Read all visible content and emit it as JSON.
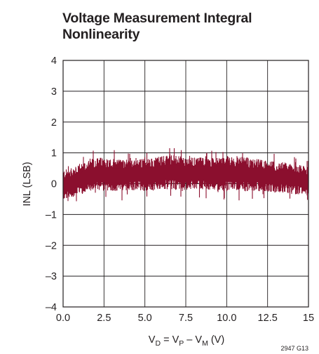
{
  "title_lines": [
    "Voltage Measurement Integral",
    "Nonlinearity"
  ],
  "figure_code": "2947 G13",
  "chart_data": {
    "type": "line",
    "title": "Voltage Measurement Integral Nonlinearity",
    "ylabel": "INL (LSB)",
    "xlabel_parts": {
      "base": "V",
      "sub_d": "D",
      "eq": " = V",
      "sub_p": "P",
      "minus": " – V",
      "sub_m": "M",
      "unit": " (V)"
    },
    "xlim": [
      0,
      15
    ],
    "ylim": [
      -4,
      4
    ],
    "xticks": [
      0,
      2.5,
      5,
      7.5,
      10,
      12.5,
      15
    ],
    "xtick_labels": [
      "0.0",
      "2.5",
      "5.0",
      "7.5",
      "10.0",
      "12.5",
      "15"
    ],
    "yticks": [
      4,
      3,
      2,
      1,
      0,
      -1,
      -2,
      -3,
      -4
    ],
    "ytick_labels": [
      "4",
      "3",
      "2",
      "1",
      "0",
      "–1",
      "–2",
      "–3",
      "–4"
    ],
    "grid": true,
    "series": [
      {
        "color": "#8b0f2e",
        "x": [
          0,
          0.5,
          1,
          1.5,
          2,
          2.5,
          3,
          3.5,
          4,
          4.5,
          5,
          5.5,
          6,
          6.5,
          7,
          7.5,
          8,
          8.5,
          9,
          9.5,
          10,
          10.5,
          11,
          11.5,
          12,
          12.5,
          13,
          13.5,
          14,
          14.5,
          15
        ],
        "upper": [
          0.45,
          0.5,
          0.6,
          0.75,
          0.85,
          0.85,
          0.8,
          0.8,
          0.8,
          0.85,
          0.8,
          0.85,
          0.9,
          0.95,
          0.9,
          0.85,
          0.85,
          0.85,
          0.85,
          0.85,
          0.9,
          0.85,
          0.85,
          0.8,
          0.8,
          0.75,
          0.7,
          0.7,
          0.65,
          0.6,
          0.55
        ],
        "lower": [
          -0.55,
          -0.45,
          -0.35,
          -0.3,
          -0.25,
          -0.25,
          -0.25,
          -0.25,
          -0.25,
          -0.2,
          -0.25,
          -0.25,
          -0.2,
          -0.2,
          -0.2,
          -0.2,
          -0.2,
          -0.2,
          -0.2,
          -0.25,
          -0.25,
          -0.25,
          -0.25,
          -0.25,
          -0.25,
          -0.25,
          -0.3,
          -0.3,
          -0.35,
          -0.35,
          -0.4
        ],
        "max_spike": 1.15,
        "min_spike": -0.85
      }
    ]
  }
}
